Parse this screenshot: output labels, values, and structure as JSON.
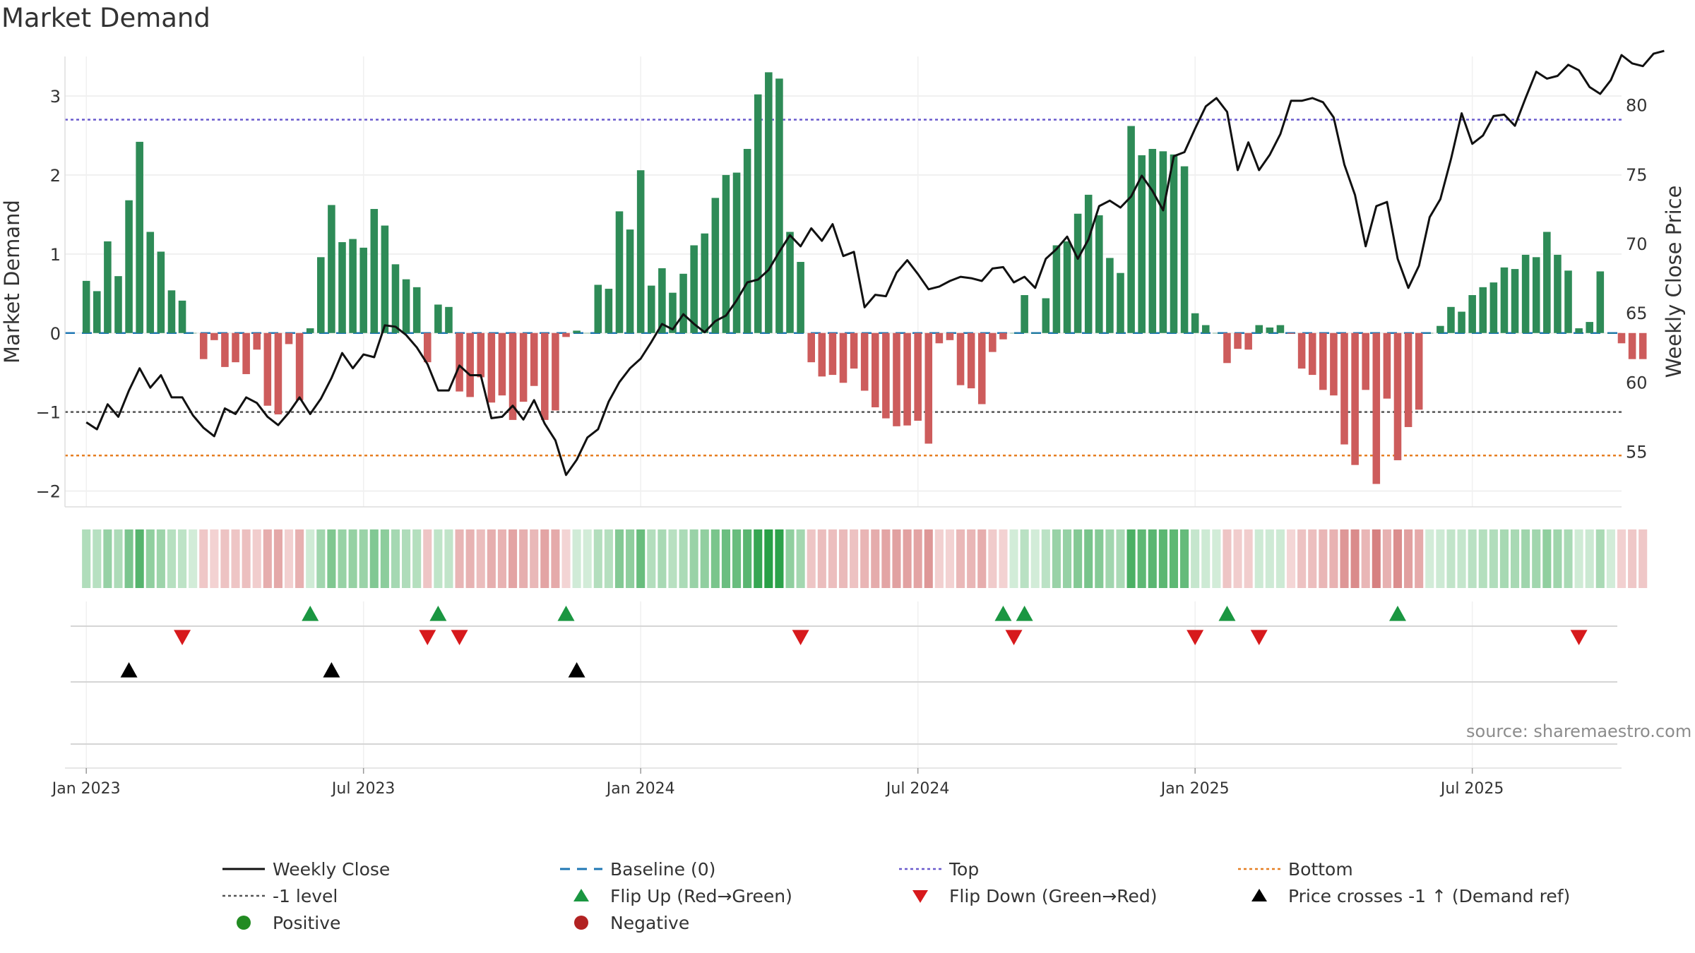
{
  "title": "Market Demand",
  "source": "source: sharemaestro.com",
  "colors": {
    "positive_bar": "#2e8b57",
    "negative_bar": "#cd5c5c",
    "close_line": "#111111",
    "baseline": "#1f77b4",
    "top_line": "#6a5acd",
    "minus1_line": "#555555",
    "bottom_line": "#e67e22",
    "flip_up": "#1a9641",
    "flip_down": "#d7191c",
    "price_cross": "#000000"
  },
  "legend": {
    "weekly_close": "Weekly Close",
    "baseline": "Baseline (0)",
    "top": "Top",
    "bottom": "Bottom",
    "minus1": "-1 level",
    "flip_up": "Flip Up (Red→Green)",
    "flip_down": "Flip Down (Green→Red)",
    "price_cross": "Price crosses -1 ↑ (Demand ref)",
    "positive": "Positive",
    "negative": "Negative"
  },
  "chart_data": {
    "type": "bar+line",
    "title": "Market Demand",
    "ylabel": "Market Demand",
    "y2label": "Weekly Close Price",
    "ylim": [
      -2.2,
      3.5
    ],
    "y2lim": [
      51,
      83.5
    ],
    "yticks": [
      "−2",
      "−1",
      "0",
      "1",
      "2",
      "3"
    ],
    "y2ticks": [
      "55",
      "60",
      "65",
      "70",
      "75",
      "80"
    ],
    "xlim_weeks": [
      -2,
      144
    ],
    "xticks": [
      {
        "week": 0,
        "label": "Jan 2023"
      },
      {
        "week": 26,
        "label": "Jul 2023"
      },
      {
        "week": 52,
        "label": "Jan 2024"
      },
      {
        "week": 78,
        "label": "Jul 2024"
      },
      {
        "week": 104,
        "label": "Jan 2025"
      },
      {
        "week": 130,
        "label": "Jul 2025"
      }
    ],
    "levels": {
      "top": 2.7,
      "minus1": -1.0,
      "bottom": -1.55,
      "baseline": 0
    },
    "demand": [
      0.66,
      0.53,
      1.16,
      0.72,
      1.68,
      2.42,
      1.28,
      1.03,
      0.54,
      0.41,
      0.0,
      -0.33,
      -0.09,
      -0.43,
      -0.37,
      -0.52,
      -0.21,
      -0.92,
      -1.03,
      -0.14,
      -0.85,
      0.06,
      0.96,
      1.62,
      1.15,
      1.19,
      1.08,
      1.57,
      1.36,
      0.87,
      0.68,
      0.58,
      -0.37,
      0.36,
      0.33,
      -0.74,
      -0.81,
      -0.56,
      -0.88,
      -0.79,
      -1.1,
      -0.87,
      -0.67,
      -1.1,
      -0.98,
      -0.05,
      0.03,
      0.0,
      0.61,
      0.56,
      1.54,
      1.31,
      2.06,
      0.6,
      0.82,
      0.51,
      0.75,
      1.11,
      1.26,
      1.71,
      2.0,
      2.03,
      2.33,
      3.02,
      3.3,
      3.22,
      1.28,
      0.9,
      -0.37,
      -0.55,
      -0.53,
      -0.63,
      -0.45,
      -0.73,
      -0.94,
      -1.08,
      -1.18,
      -1.17,
      -1.11,
      -1.4,
      -0.13,
      -0.09,
      -0.66,
      -0.7,
      -0.9,
      -0.24,
      -0.08,
      0.0,
      0.48,
      0.0,
      0.44,
      1.11,
      1.16,
      1.51,
      1.75,
      1.49,
      0.95,
      0.76,
      2.62,
      2.25,
      2.33,
      2.3,
      2.26,
      2.11,
      0.25,
      0.1,
      0.0,
      -0.38,
      -0.2,
      -0.21,
      0.1,
      0.07,
      0.1,
      -0.01,
      -0.45,
      -0.53,
      -0.72,
      -0.79,
      -1.41,
      -1.67,
      -0.72,
      -1.91,
      -0.83,
      -1.61,
      -1.19,
      -0.97,
      0.0,
      0.09,
      0.33,
      0.27,
      0.48,
      0.58,
      0.64,
      0.83,
      0.81,
      0.99,
      0.96,
      1.28,
      0.99,
      0.79,
      0.06,
      0.14,
      0.78,
      0.0,
      -0.13,
      -0.33,
      -0.33
    ],
    "close": [
      57.1,
      56.6,
      58.4,
      57.5,
      59.4,
      61.0,
      59.6,
      60.5,
      58.9,
      58.9,
      57.6,
      56.7,
      56.1,
      58.1,
      57.7,
      58.9,
      58.5,
      57.5,
      56.9,
      57.8,
      58.9,
      57.7,
      58.8,
      60.3,
      62.1,
      61.0,
      62.0,
      61.8,
      64.1,
      64.0,
      63.4,
      62.5,
      61.3,
      59.4,
      59.4,
      61.2,
      60.5,
      60.5,
      57.4,
      57.5,
      58.3,
      57.3,
      58.7,
      57.0,
      55.8,
      53.3,
      54.4,
      56.0,
      56.6,
      58.6,
      60.0,
      61.0,
      61.7,
      62.9,
      64.2,
      63.8,
      64.9,
      64.2,
      63.6,
      64.4,
      64.8,
      65.9,
      67.2,
      67.4,
      68.1,
      69.4,
      70.6,
      69.8,
      71.1,
      70.2,
      71.4,
      69.1,
      69.4,
      65.4,
      66.3,
      66.2,
      67.9,
      68.8,
      67.8,
      66.7,
      66.9,
      67.3,
      67.6,
      67.5,
      67.3,
      68.2,
      68.3,
      67.2,
      67.6,
      66.8,
      68.9,
      69.6,
      70.5,
      68.9,
      70.3,
      72.7,
      73.1,
      72.6,
      73.4,
      74.9,
      73.8,
      72.4,
      76.3,
      76.6,
      78.3,
      79.9,
      80.5,
      79.5,
      75.3,
      77.3,
      75.3,
      76.4,
      77.9,
      80.3,
      80.3,
      80.5,
      80.2,
      79.1,
      75.7,
      73.5,
      69.8,
      72.7,
      73.0,
      68.9,
      66.8,
      68.4,
      71.9,
      73.2,
      76.1,
      79.4,
      77.2,
      77.8,
      79.2,
      79.3,
      78.5,
      80.5,
      82.4,
      81.9,
      82.1,
      82.9,
      82.5,
      81.3,
      80.8,
      81.8,
      83.6,
      83.0,
      82.8,
      83.7,
      83.9
    ],
    "flip_up_weeks": [
      21,
      33,
      45,
      86,
      88,
      107,
      123
    ],
    "flip_down_weeks": [
      9,
      32,
      35,
      67,
      87,
      104,
      110,
      140
    ],
    "price_cross_weeks": [
      4,
      23,
      46
    ]
  }
}
